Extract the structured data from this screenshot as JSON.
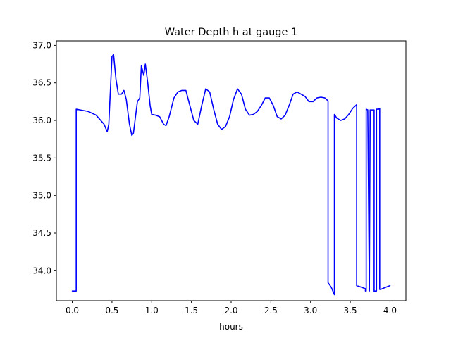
{
  "chart_data": {
    "type": "line",
    "title": "Water Depth h at gauge 1",
    "xlabel": "hours",
    "ylabel": "",
    "xlim": [
      -0.2,
      4.2
    ],
    "ylim": [
      33.6,
      37.06
    ],
    "xticks": [
      0.0,
      0.5,
      1.0,
      1.5,
      2.0,
      2.5,
      3.0,
      3.5,
      4.0
    ],
    "xtick_labels": [
      "0.0",
      "0.5",
      "1.0",
      "1.5",
      "2.0",
      "2.5",
      "3.0",
      "3.5",
      "4.0"
    ],
    "yticks": [
      34.0,
      34.5,
      35.0,
      35.5,
      36.0,
      36.5,
      37.0
    ],
    "ytick_labels": [
      "34.0",
      "34.5",
      "35.0",
      "35.5",
      "36.0",
      "36.5",
      "37.0"
    ],
    "grid": false,
    "series": [
      {
        "color": "#0000ff",
        "x": [
          0.0,
          0.05,
          0.05,
          0.1,
          0.2,
          0.3,
          0.4,
          0.44,
          0.46,
          0.48,
          0.5,
          0.52,
          0.55,
          0.58,
          0.62,
          0.65,
          0.68,
          0.72,
          0.75,
          0.77,
          0.79,
          0.82,
          0.85,
          0.87,
          0.9,
          0.92,
          0.95,
          0.98,
          1.0,
          1.05,
          1.1,
          1.15,
          1.18,
          1.22,
          1.28,
          1.33,
          1.38,
          1.43,
          1.48,
          1.53,
          1.58,
          1.63,
          1.68,
          1.73,
          1.78,
          1.83,
          1.88,
          1.93,
          1.98,
          2.03,
          2.08,
          2.13,
          2.18,
          2.23,
          2.28,
          2.33,
          2.38,
          2.43,
          2.48,
          2.53,
          2.58,
          2.63,
          2.68,
          2.73,
          2.78,
          2.83,
          2.88,
          2.93,
          2.98,
          3.03,
          3.08,
          3.13,
          3.18,
          3.22,
          3.22,
          3.26,
          3.3,
          3.3,
          3.33,
          3.38,
          3.43,
          3.48,
          3.53,
          3.58,
          3.58,
          3.64,
          3.69,
          3.69,
          3.7,
          3.7,
          3.72,
          3.74,
          3.74,
          3.75,
          3.75,
          3.78,
          3.8,
          3.8,
          3.81,
          3.81,
          3.83,
          3.83,
          3.86,
          3.86,
          3.87,
          3.87,
          3.88,
          3.95,
          4.0
        ],
        "y": [
          33.73,
          33.73,
          36.15,
          36.14,
          36.12,
          36.07,
          35.95,
          35.85,
          35.95,
          36.4,
          36.85,
          36.88,
          36.55,
          36.35,
          36.35,
          36.4,
          36.28,
          35.95,
          35.8,
          35.83,
          36.0,
          36.25,
          36.3,
          36.73,
          36.6,
          36.75,
          36.5,
          36.2,
          36.08,
          36.07,
          36.05,
          35.95,
          35.93,
          36.05,
          36.3,
          36.38,
          36.4,
          36.4,
          36.2,
          36.0,
          35.95,
          36.2,
          36.42,
          36.38,
          36.15,
          35.95,
          35.88,
          35.92,
          36.05,
          36.28,
          36.42,
          36.35,
          36.15,
          36.07,
          36.08,
          36.12,
          36.2,
          36.3,
          36.3,
          36.2,
          36.05,
          36.02,
          36.07,
          36.2,
          36.35,
          36.38,
          36.35,
          36.32,
          36.25,
          36.25,
          36.3,
          36.31,
          36.3,
          36.26,
          33.84,
          33.78,
          33.68,
          36.08,
          36.03,
          36.0,
          36.02,
          36.08,
          36.16,
          36.21,
          33.8,
          33.78,
          33.76,
          33.73,
          33.73,
          36.15,
          36.14,
          33.73,
          33.73,
          36.14,
          36.14,
          36.14,
          36.14,
          33.72,
          33.72,
          33.73,
          33.73,
          36.15,
          36.15,
          36.16,
          36.16,
          33.75,
          33.75,
          33.78,
          33.8
        ]
      }
    ]
  }
}
